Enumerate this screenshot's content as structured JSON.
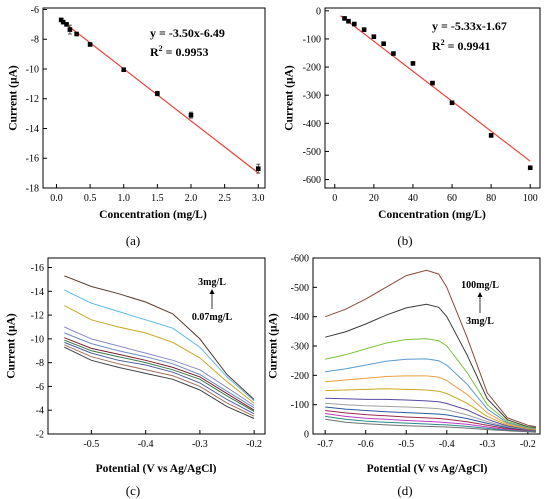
{
  "chart_data": [
    {
      "type": "scatter",
      "panel_label": "(a)",
      "xlabel": "Concentration (mg/L)",
      "ylabel": "Current (µA)",
      "xlim": [
        -0.2,
        3.1
      ],
      "ylim": [
        -18,
        -5.9
      ],
      "xticks": [
        "0.0",
        "0.5",
        "1.0",
        "1.5",
        "2.0",
        "2.5",
        "3.0"
      ],
      "yticks": [
        "-6",
        "-8",
        "-10",
        "-12",
        "-14",
        "-16",
        "-18"
      ],
      "grid": false,
      "points": [
        {
          "x": 0.07,
          "y": -6.7,
          "err": 0.1
        },
        {
          "x": 0.1,
          "y": -6.85,
          "err": 0.1
        },
        {
          "x": 0.15,
          "y": -7.0,
          "err": 0.1
        },
        {
          "x": 0.2,
          "y": -7.35,
          "err": 0.3
        },
        {
          "x": 0.3,
          "y": -7.65,
          "err": 0.1
        },
        {
          "x": 0.5,
          "y": -8.35,
          "err": 0.1
        },
        {
          "x": 1.0,
          "y": -10.05,
          "err": 0.1
        },
        {
          "x": 1.5,
          "y": -11.65,
          "err": 0.15
        },
        {
          "x": 2.0,
          "y": -13.1,
          "err": 0.2
        },
        {
          "x": 3.0,
          "y": -16.7,
          "err": 0.3
        }
      ],
      "fit": {
        "slope": -3.5,
        "intercept": -6.49,
        "x_range": [
          0.05,
          3.0
        ],
        "color": "#e8433a"
      },
      "equation": "y = -3.50x-6.49",
      "r2_label": "R",
      "r2_sup": "2",
      "r2_value": " = 0.9953"
    },
    {
      "type": "scatter",
      "panel_label": "(b)",
      "xlabel": "Concentration (mg/L)",
      "ylabel": "Current (µA)",
      "xlim": [
        -5,
        105
      ],
      "ylim": [
        -630,
        10
      ],
      "xticks": [
        "0",
        "20",
        "40",
        "60",
        "80",
        "100"
      ],
      "yticks": [
        "0",
        "-100",
        "-200",
        "-300",
        "-400",
        "-500",
        "-600"
      ],
      "grid": false,
      "points": [
        {
          "x": 5,
          "y": -27
        },
        {
          "x": 7,
          "y": -37
        },
        {
          "x": 10,
          "y": -47
        },
        {
          "x": 15,
          "y": -67
        },
        {
          "x": 20,
          "y": -92
        },
        {
          "x": 25,
          "y": -117
        },
        {
          "x": 30,
          "y": -152
        },
        {
          "x": 40,
          "y": -187
        },
        {
          "x": 50,
          "y": -257
        },
        {
          "x": 60,
          "y": -327
        },
        {
          "x": 80,
          "y": -443
        },
        {
          "x": 100,
          "y": -558
        }
      ],
      "fit": {
        "slope": -5.33,
        "intercept": -1.67,
        "x_range": [
          3,
          100
        ],
        "color": "#e8433a"
      },
      "equation": "y = -5.33x-1.67",
      "r2_label": "R",
      "r2_sup": "2",
      "r2_value": " = 0.9941"
    },
    {
      "type": "line",
      "panel_label": "(c)",
      "xlabel": "Potential (V vs Ag/AgCl)",
      "ylabel": "Current (µA)",
      "xlim": [
        -0.58,
        -0.18
      ],
      "ylim": [
        -2,
        -16.8
      ],
      "xticks": [
        "-0.5",
        "-0.4",
        "-0.3",
        "-0.2"
      ],
      "yticks": [
        "-16",
        "-14",
        "-12",
        "-10",
        "-8",
        "-6",
        "-4",
        "-2"
      ],
      "grid": false,
      "annotation_top": "3mg/L",
      "annotation_bottom": "0.07mg/L",
      "series": [
        {
          "color": "#5a3a2e",
          "x": [
            -0.55,
            -0.5,
            -0.45,
            -0.4,
            -0.35,
            -0.3,
            -0.25,
            -0.2
          ],
          "y": [
            -15.3,
            -14.4,
            -13.8,
            -13.1,
            -12.1,
            -10.0,
            -7.0,
            -4.9
          ]
        },
        {
          "color": "#5ab8e6",
          "x": [
            -0.55,
            -0.5,
            -0.45,
            -0.4,
            -0.35,
            -0.3,
            -0.25,
            -0.2
          ],
          "y": [
            -14.1,
            -13.0,
            -12.3,
            -11.6,
            -10.9,
            -9.3,
            -6.8,
            -4.8
          ]
        },
        {
          "color": "#c9a820",
          "x": [
            -0.55,
            -0.5,
            -0.45,
            -0.4,
            -0.35,
            -0.3,
            -0.25,
            -0.2
          ],
          "y": [
            -12.8,
            -11.6,
            -11.0,
            -10.5,
            -9.7,
            -8.4,
            -6.4,
            -4.6
          ]
        },
        {
          "color": "#8a8ac8",
          "x": [
            -0.55,
            -0.5,
            -0.45,
            -0.4,
            -0.35,
            -0.3,
            -0.25,
            -0.2
          ],
          "y": [
            -11.0,
            -10.0,
            -9.4,
            -8.8,
            -8.2,
            -7.4,
            -5.9,
            -4.4
          ]
        },
        {
          "color": "#6a8ac0",
          "x": [
            -0.55,
            -0.5,
            -0.45,
            -0.4,
            -0.35,
            -0.3,
            -0.25,
            -0.2
          ],
          "y": [
            -10.5,
            -9.6,
            -9.0,
            -8.5,
            -7.9,
            -7.0,
            -5.6,
            -4.2
          ]
        },
        {
          "color": "#7a2030",
          "x": [
            -0.55,
            -0.5,
            -0.45,
            -0.4,
            -0.35,
            -0.3,
            -0.25,
            -0.2
          ],
          "y": [
            -10.1,
            -9.2,
            -8.7,
            -8.2,
            -7.6,
            -6.8,
            -5.4,
            -4.0
          ]
        },
        {
          "color": "#3a7a4a",
          "x": [
            -0.55,
            -0.5,
            -0.45,
            -0.4,
            -0.35,
            -0.3,
            -0.25,
            -0.2
          ],
          "y": [
            -9.9,
            -9.0,
            -8.5,
            -8.0,
            -7.4,
            -6.6,
            -5.2,
            -3.9
          ]
        },
        {
          "color": "#50609a",
          "x": [
            -0.55,
            -0.5,
            -0.45,
            -0.4,
            -0.35,
            -0.3,
            -0.25,
            -0.2
          ],
          "y": [
            -9.7,
            -8.8,
            -8.2,
            -7.8,
            -7.2,
            -6.3,
            -4.9,
            -3.7
          ]
        },
        {
          "color": "#a07060",
          "x": [
            -0.55,
            -0.5,
            -0.45,
            -0.4,
            -0.35,
            -0.3,
            -0.25,
            -0.2
          ],
          "y": [
            -9.5,
            -8.5,
            -7.9,
            -7.4,
            -6.9,
            -6.0,
            -4.6,
            -3.5
          ]
        },
        {
          "color": "#404040",
          "x": [
            -0.55,
            -0.5,
            -0.45,
            -0.4,
            -0.35,
            -0.3,
            -0.25,
            -0.2
          ],
          "y": [
            -9.3,
            -8.2,
            -7.6,
            -7.1,
            -6.6,
            -5.7,
            -4.3,
            -3.3
          ]
        }
      ]
    },
    {
      "type": "line",
      "panel_label": "(d)",
      "xlabel": "Potential (V vs Ag/AgCl)",
      "ylabel": "Current (µA)",
      "xlim": [
        -0.73,
        -0.17
      ],
      "ylim": [
        0,
        -600
      ],
      "xticks": [
        "-0.7",
        "-0.6",
        "-0.5",
        "-0.4",
        "-0.3",
        "-0.2"
      ],
      "yticks": [
        "-600",
        "-500",
        "-400",
        "-300",
        "-200",
        "-100",
        "0"
      ],
      "grid": false,
      "annotation_top": "100mg/L",
      "annotation_bottom": "3mg/L",
      "series": [
        {
          "color": "#8a4a3a",
          "x": [
            -0.7,
            -0.65,
            -0.6,
            -0.55,
            -0.5,
            -0.45,
            -0.42,
            -0.4,
            -0.35,
            -0.3,
            -0.25,
            -0.2,
            -0.18
          ],
          "y": [
            -400,
            -425,
            -460,
            -500,
            -540,
            -558,
            -545,
            -500,
            -330,
            -140,
            -55,
            -30,
            -25
          ]
        },
        {
          "color": "#3a3a3a",
          "x": [
            -0.7,
            -0.65,
            -0.6,
            -0.55,
            -0.5,
            -0.45,
            -0.42,
            -0.4,
            -0.35,
            -0.3,
            -0.25,
            -0.2,
            -0.18
          ],
          "y": [
            -330,
            -348,
            -375,
            -405,
            -430,
            -442,
            -432,
            -400,
            -270,
            -120,
            -48,
            -25,
            -22
          ]
        },
        {
          "color": "#7ac23a",
          "x": [
            -0.7,
            -0.65,
            -0.6,
            -0.55,
            -0.5,
            -0.45,
            -0.42,
            -0.4,
            -0.35,
            -0.3,
            -0.25,
            -0.2,
            -0.18
          ],
          "y": [
            -255,
            -270,
            -290,
            -310,
            -322,
            -325,
            -318,
            -300,
            -210,
            -100,
            -42,
            -22,
            -19
          ]
        },
        {
          "color": "#5a9ad0",
          "x": [
            -0.7,
            -0.65,
            -0.6,
            -0.55,
            -0.5,
            -0.45,
            -0.42,
            -0.4,
            -0.35,
            -0.3,
            -0.25,
            -0.2,
            -0.18
          ],
          "y": [
            -212,
            -222,
            -235,
            -248,
            -255,
            -256,
            -250,
            -235,
            -170,
            -85,
            -38,
            -20,
            -17
          ]
        },
        {
          "color": "#e8a040",
          "x": [
            -0.7,
            -0.65,
            -0.6,
            -0.55,
            -0.5,
            -0.45,
            -0.42,
            -0.4,
            -0.35,
            -0.3,
            -0.25,
            -0.2,
            -0.18
          ],
          "y": [
            -178,
            -184,
            -190,
            -196,
            -198,
            -198,
            -194,
            -182,
            -135,
            -72,
            -34,
            -18,
            -15
          ]
        },
        {
          "color": "#c9a820",
          "x": [
            -0.7,
            -0.65,
            -0.6,
            -0.55,
            -0.5,
            -0.45,
            -0.42,
            -0.4,
            -0.35,
            -0.3,
            -0.25,
            -0.2,
            -0.18
          ],
          "y": [
            -148,
            -150,
            -152,
            -154,
            -152,
            -150,
            -146,
            -138,
            -105,
            -60,
            -30,
            -16,
            -14
          ]
        },
        {
          "color": "#5a4aa0",
          "x": [
            -0.7,
            -0.65,
            -0.6,
            -0.55,
            -0.5,
            -0.45,
            -0.42,
            -0.4,
            -0.35,
            -0.3,
            -0.25,
            -0.2,
            -0.18
          ],
          "y": [
            -122,
            -120,
            -118,
            -118,
            -116,
            -113,
            -110,
            -104,
            -82,
            -50,
            -27,
            -14,
            -12
          ]
        },
        {
          "color": "#a0a0a0",
          "x": [
            -0.7,
            -0.65,
            -0.6,
            -0.55,
            -0.5,
            -0.45,
            -0.42,
            -0.4,
            -0.35,
            -0.3,
            -0.25,
            -0.2,
            -0.18
          ],
          "y": [
            -105,
            -100,
            -96,
            -94,
            -92,
            -89,
            -86,
            -82,
            -65,
            -42,
            -24,
            -13,
            -11
          ]
        },
        {
          "color": "#2a5aa0",
          "x": [
            -0.7,
            -0.65,
            -0.6,
            -0.55,
            -0.5,
            -0.45,
            -0.42,
            -0.4,
            -0.35,
            -0.3,
            -0.25,
            -0.2,
            -0.18
          ],
          "y": [
            -92,
            -85,
            -80,
            -76,
            -73,
            -70,
            -68,
            -65,
            -53,
            -36,
            -21,
            -12,
            -10
          ]
        },
        {
          "color": "#9a2a4a",
          "x": [
            -0.7,
            -0.65,
            -0.6,
            -0.55,
            -0.5,
            -0.45,
            -0.42,
            -0.4,
            -0.35,
            -0.3,
            -0.25,
            -0.2,
            -0.18
          ],
          "y": [
            -80,
            -72,
            -66,
            -62,
            -58,
            -55,
            -53,
            -50,
            -42,
            -30,
            -18,
            -11,
            -9
          ]
        },
        {
          "color": "#c03ac0",
          "x": [
            -0.7,
            -0.65,
            -0.6,
            -0.55,
            -0.5,
            -0.45,
            -0.42,
            -0.4,
            -0.35,
            -0.3,
            -0.25,
            -0.2,
            -0.18
          ],
          "y": [
            -70,
            -60,
            -54,
            -50,
            -46,
            -43,
            -41,
            -39,
            -33,
            -24,
            -15,
            -10,
            -8
          ]
        },
        {
          "color": "#2a8a8a",
          "x": [
            -0.7,
            -0.65,
            -0.6,
            -0.55,
            -0.5,
            -0.45,
            -0.42,
            -0.4,
            -0.35,
            -0.3,
            -0.25,
            -0.2,
            -0.18
          ],
          "y": [
            -60,
            -50,
            -44,
            -40,
            -37,
            -34,
            -32,
            -31,
            -26,
            -19,
            -13,
            -9,
            -7
          ]
        },
        {
          "color": "#707070",
          "x": [
            -0.7,
            -0.65,
            -0.6,
            -0.55,
            -0.5,
            -0.45,
            -0.42,
            -0.4,
            -0.35,
            -0.3,
            -0.25,
            -0.2,
            -0.18
          ],
          "y": [
            -50,
            -40,
            -35,
            -31,
            -28,
            -26,
            -25,
            -24,
            -20,
            -15,
            -11,
            -8,
            -6
          ]
        }
      ]
    }
  ]
}
